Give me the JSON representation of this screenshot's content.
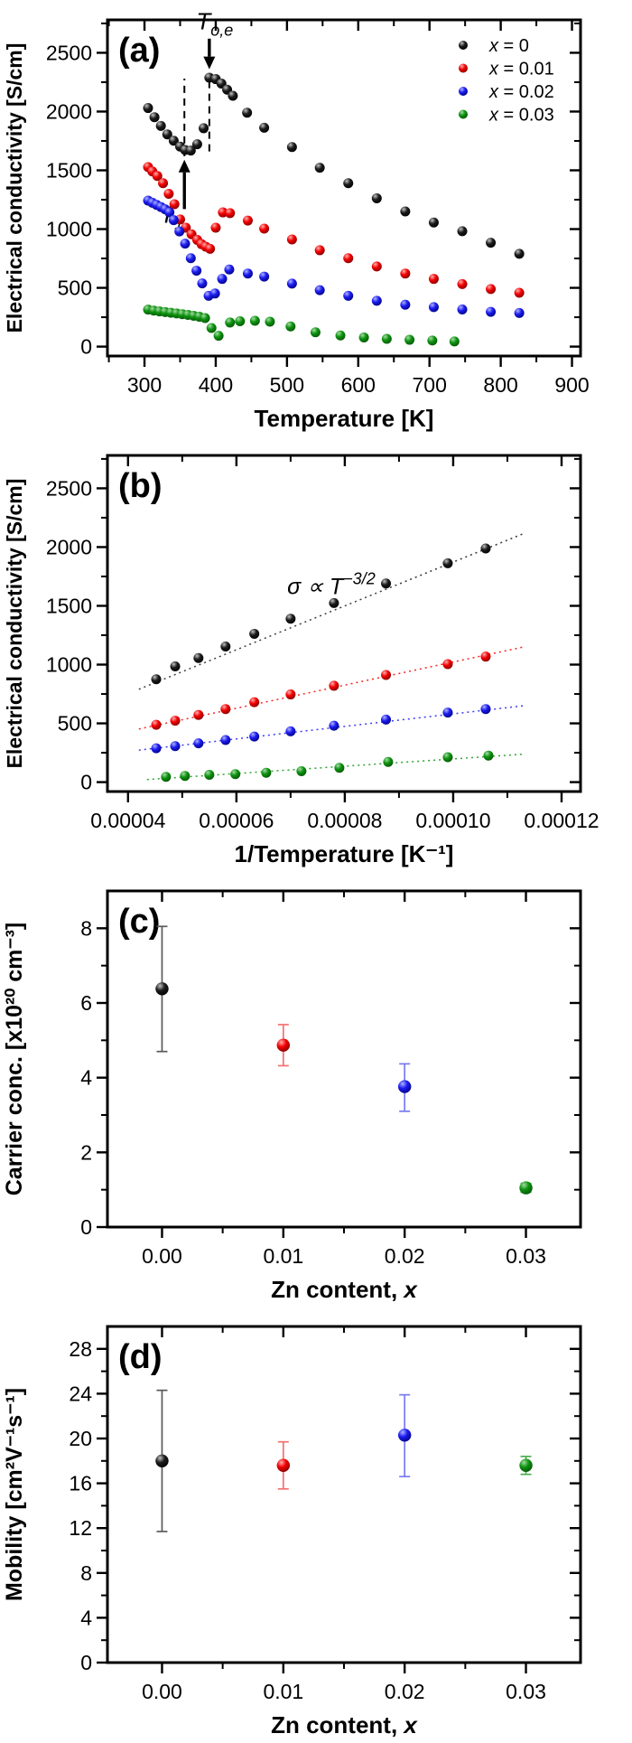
{
  "figure_background": "#ffffff",
  "palette": {
    "black": {
      "hi": "#c2c2c2",
      "base": "#1c1c1c",
      "dark": "#000000",
      "bar": "#5a5a5a"
    },
    "red": {
      "hi": "#ffb0b0",
      "base": "#f40000",
      "dark": "#7c0000",
      "bar": "#f47070"
    },
    "blue": {
      "hi": "#aeb4ff",
      "base": "#1c1cf0",
      "dark": "#00007d",
      "bar": "#7a7af0"
    },
    "green": {
      "hi": "#a6dca6",
      "base": "#0e9310",
      "dark": "#055205",
      "bar": "#4fae52"
    }
  },
  "frame_color": "#000000",
  "chart_data": [
    {
      "id": "a",
      "type": "scatter",
      "panel_label": "(a)",
      "xlabel": "Temperature [K]",
      "xlabel_italic_suffix": "",
      "ylabel": "Electrical conductivity [S/cm]",
      "xlim": [
        248,
        912
      ],
      "ylim": [
        -80,
        2780
      ],
      "xticks": [
        300,
        400,
        500,
        600,
        700,
        800,
        900
      ],
      "yticks": [
        0,
        500,
        1000,
        1500,
        2000,
        2500
      ],
      "xminor_step": 50,
      "yminor_step": 250,
      "xtick_decimals": 0,
      "grid": false,
      "legend": [
        {
          "color": "black",
          "label": "x = 0"
        },
        {
          "color": "red",
          "label": "x = 0.01"
        },
        {
          "color": "blue",
          "label": "x = 0.02"
        },
        {
          "color": "green",
          "label": "x = 0.03"
        }
      ],
      "series": [
        {
          "name": "x = 0",
          "color": "black",
          "points": [
            [
              305,
              2030
            ],
            [
              314,
              1952
            ],
            [
              323,
              1878
            ],
            [
              332,
              1806
            ],
            [
              341,
              1752
            ],
            [
              350,
              1702
            ],
            [
              357,
              1673
            ],
            [
              365,
              1668
            ],
            [
              374,
              1722
            ],
            [
              383,
              1858
            ],
            [
              391,
              2288
            ],
            [
              400,
              2276
            ],
            [
              408,
              2238
            ],
            [
              416,
              2186
            ],
            [
              424,
              2134
            ],
            [
              444,
              1990
            ],
            [
              468,
              1862
            ],
            [
              507,
              1698
            ],
            [
              546,
              1522
            ],
            [
              586,
              1390
            ],
            [
              626,
              1262
            ],
            [
              666,
              1150
            ],
            [
              706,
              1056
            ],
            [
              746,
              982
            ],
            [
              786,
              884
            ],
            [
              826,
              790
            ]
          ]
        },
        {
          "name": "x = 0.01",
          "color": "red",
          "points": [
            [
              305,
              1528
            ],
            [
              311,
              1490
            ],
            [
              318,
              1452
            ],
            [
              326,
              1390
            ],
            [
              334,
              1300
            ],
            [
              342,
              1212
            ],
            [
              350,
              1082
            ],
            [
              358,
              1012
            ],
            [
              366,
              956
            ],
            [
              374,
              908
            ],
            [
              380,
              872
            ],
            [
              386,
              850
            ],
            [
              392,
              832
            ],
            [
              400,
              1012
            ],
            [
              410,
              1142
            ],
            [
              420,
              1136
            ],
            [
              445,
              1072
            ],
            [
              468,
              1004
            ],
            [
              507,
              912
            ],
            [
              546,
              820
            ],
            [
              586,
              752
            ],
            [
              626,
              682
            ],
            [
              666,
              622
            ],
            [
              706,
              576
            ],
            [
              746,
              532
            ],
            [
              786,
              490
            ],
            [
              826,
              458
            ]
          ]
        },
        {
          "name": "x = 0.02",
          "color": "blue",
          "points": [
            [
              305,
              1242
            ],
            [
              311,
              1224
            ],
            [
              317,
              1206
            ],
            [
              323,
              1188
            ],
            [
              329,
              1168
            ],
            [
              335,
              1142
            ],
            [
              341,
              1076
            ],
            [
              349,
              980
            ],
            [
              357,
              876
            ],
            [
              365,
              752
            ],
            [
              373,
              646
            ],
            [
              381,
              538
            ],
            [
              390,
              432
            ],
            [
              399,
              452
            ],
            [
              409,
              576
            ],
            [
              419,
              656
            ],
            [
              445,
              622
            ],
            [
              468,
              596
            ],
            [
              507,
              536
            ],
            [
              546,
              480
            ],
            [
              586,
              432
            ],
            [
              626,
              390
            ],
            [
              666,
              356
            ],
            [
              706,
              336
            ],
            [
              746,
              316
            ],
            [
              786,
              296
            ],
            [
              826,
              286
            ]
          ]
        },
        {
          "name": "x = 0.03",
          "color": "green",
          "points": [
            [
              305,
              315
            ],
            [
              313,
              306
            ],
            [
              321,
              300
            ],
            [
              329,
              294
            ],
            [
              337,
              288
            ],
            [
              345,
              282
            ],
            [
              353,
              276
            ],
            [
              361,
              270
            ],
            [
              369,
              262
            ],
            [
              377,
              254
            ],
            [
              385,
              243
            ],
            [
              394,
              158
            ],
            [
              404,
              92
            ],
            [
              420,
              205
            ],
            [
              434,
              216
            ],
            [
              455,
              220
            ],
            [
              476,
              212
            ],
            [
              505,
              172
            ],
            [
              540,
              122
            ],
            [
              575,
              95
            ],
            [
              608,
              78
            ],
            [
              640,
              66
            ],
            [
              672,
              58
            ],
            [
              704,
              52
            ],
            [
              735,
              44
            ]
          ]
        }
      ],
      "annotations": {
        "dashed_lines": [
          {
            "x": 356,
            "y1": 1620,
            "y2": 2280
          },
          {
            "x": 391,
            "y1": 1660,
            "y2": 2300
          }
        ],
        "arrows": [
          {
            "x": 391,
            "tail_y": 2620,
            "head_y": 2360,
            "label_base": "T",
            "label_sub": "o,e",
            "label_x_offset": 6,
            "label_y": 2700
          },
          {
            "x": 356,
            "tail_y": 1170,
            "head_y": 1590,
            "label_base": "T",
            "label_sub": "1",
            "label_x_offset": -14,
            "label_y": 1055
          }
        ]
      }
    },
    {
      "id": "b",
      "type": "scatter",
      "panel_label": "(b)",
      "xlabel": "1/Temperature [K⁻¹]",
      "xlabel_italic_suffix": "",
      "ylabel": "Electrical conductivity [S/cm]",
      "xlim": [
        3.62e-05,
        0.0001235
      ],
      "ylim": [
        -80,
        2780
      ],
      "xticks": [
        4e-05,
        6e-05,
        8e-05,
        0.0001,
        0.00012
      ],
      "yticks": [
        0,
        500,
        1000,
        1500,
        2000,
        2500
      ],
      "xminor_step": 1e-05,
      "yminor_step": 250,
      "xtick_decimals": 5,
      "grid": false,
      "fit_lines": [
        {
          "color": "black",
          "x1": 4.2e-05,
          "y1": 790,
          "x2": 0.000113,
          "y2": 2115
        },
        {
          "color": "red",
          "x1": 4.2e-05,
          "y1": 452,
          "x2": 0.000113,
          "y2": 1150
        },
        {
          "color": "blue",
          "x1": 4.2e-05,
          "y1": 272,
          "x2": 0.000113,
          "y2": 650
        },
        {
          "color": "green",
          "x1": 4.35e-05,
          "y1": 22,
          "x2": 0.000113,
          "y2": 238
        }
      ],
      "annotation_prop": {
        "x": 7.75e-05,
        "y": 1600,
        "base": "σ ∝ T",
        "sup": "−3/2"
      },
      "series": [
        {
          "name": "x = 0",
          "color": "black",
          "points": [
            [
              4.52e-05,
              875
            ],
            [
              4.87e-05,
              985
            ],
            [
              5.3e-05,
              1056
            ],
            [
              5.8e-05,
              1154
            ],
            [
              6.33e-05,
              1262
            ],
            [
              7e-05,
              1390
            ],
            [
              7.8e-05,
              1524
            ],
            [
              8.76e-05,
              1690
            ],
            [
              9.9e-05,
              1862
            ],
            [
              0.000106,
              1988
            ]
          ]
        },
        {
          "name": "x = 0.01",
          "color": "red",
          "points": [
            [
              4.52e-05,
              488
            ],
            [
              4.87e-05,
              523
            ],
            [
              5.3e-05,
              572
            ],
            [
              5.8e-05,
              622
            ],
            [
              6.33e-05,
              680
            ],
            [
              7e-05,
              746
            ],
            [
              7.8e-05,
              820
            ],
            [
              8.76e-05,
              912
            ],
            [
              9.9e-05,
              1004
            ],
            [
              0.000106,
              1068
            ]
          ]
        },
        {
          "name": "x = 0.02",
          "color": "blue",
          "points": [
            [
              4.52e-05,
              288
            ],
            [
              4.87e-05,
              306
            ],
            [
              5.3e-05,
              330
            ],
            [
              5.8e-05,
              358
            ],
            [
              6.33e-05,
              388
            ],
            [
              7e-05,
              432
            ],
            [
              7.8e-05,
              480
            ],
            [
              8.76e-05,
              532
            ],
            [
              9.9e-05,
              592
            ],
            [
              0.000106,
              622
            ]
          ]
        },
        {
          "name": "x = 0.03",
          "color": "green",
          "points": [
            [
              4.7e-05,
              45
            ],
            [
              5.05e-05,
              53
            ],
            [
              5.5e-05,
              62
            ],
            [
              5.98e-05,
              68
            ],
            [
              6.55e-05,
              80
            ],
            [
              7.2e-05,
              93
            ],
            [
              7.9e-05,
              122
            ],
            [
              8.8e-05,
              172
            ],
            [
              9.9e-05,
              212
            ],
            [
              0.0001065,
              226
            ]
          ]
        }
      ]
    },
    {
      "id": "c",
      "type": "scatter-error",
      "panel_label": "(c)",
      "xlabel": "Zn content, ",
      "xlabel_italic_suffix": "x",
      "ylabel": "Carrier conc. [x10²⁰ cm⁻³]",
      "xlim": [
        -0.0045,
        0.0345
      ],
      "ylim": [
        0,
        9
      ],
      "xticks": [
        0,
        0.01,
        0.02,
        0.03
      ],
      "yticks": [
        0,
        2,
        4,
        6,
        8
      ],
      "xminor_step": 0.005,
      "yminor_step": 1,
      "xtick_decimals": 2,
      "grid": false,
      "points": [
        {
          "x": 0.0,
          "y": 6.38,
          "lo": 4.7,
          "hi": 8.05,
          "color": "black"
        },
        {
          "x": 0.01,
          "y": 4.87,
          "lo": 4.32,
          "hi": 5.42,
          "color": "red"
        },
        {
          "x": 0.02,
          "y": 3.76,
          "lo": 3.1,
          "hi": 4.37,
          "color": "blue"
        },
        {
          "x": 0.03,
          "y": 1.05,
          "lo": 0.93,
          "hi": 1.17,
          "color": "green"
        }
      ]
    },
    {
      "id": "d",
      "type": "scatter-error",
      "panel_label": "(d)",
      "xlabel": "Zn content, ",
      "xlabel_italic_suffix": "x",
      "ylabel": "Mobility [cm²V⁻¹s⁻¹]",
      "xlim": [
        -0.0045,
        0.0345
      ],
      "ylim": [
        0,
        30
      ],
      "xticks": [
        0,
        0.01,
        0.02,
        0.03
      ],
      "yticks": [
        0,
        4,
        8,
        12,
        16,
        20,
        24,
        28
      ],
      "xminor_step": 0.005,
      "yminor_step": 2,
      "xtick_decimals": 2,
      "grid": false,
      "points": [
        {
          "x": 0.0,
          "y": 18.0,
          "lo": 11.7,
          "hi": 24.3,
          "color": "black"
        },
        {
          "x": 0.01,
          "y": 17.6,
          "lo": 15.5,
          "hi": 19.7,
          "color": "red"
        },
        {
          "x": 0.02,
          "y": 20.3,
          "lo": 16.6,
          "hi": 23.9,
          "color": "blue"
        },
        {
          "x": 0.03,
          "y": 17.6,
          "lo": 16.8,
          "hi": 18.4,
          "color": "green"
        }
      ]
    }
  ]
}
